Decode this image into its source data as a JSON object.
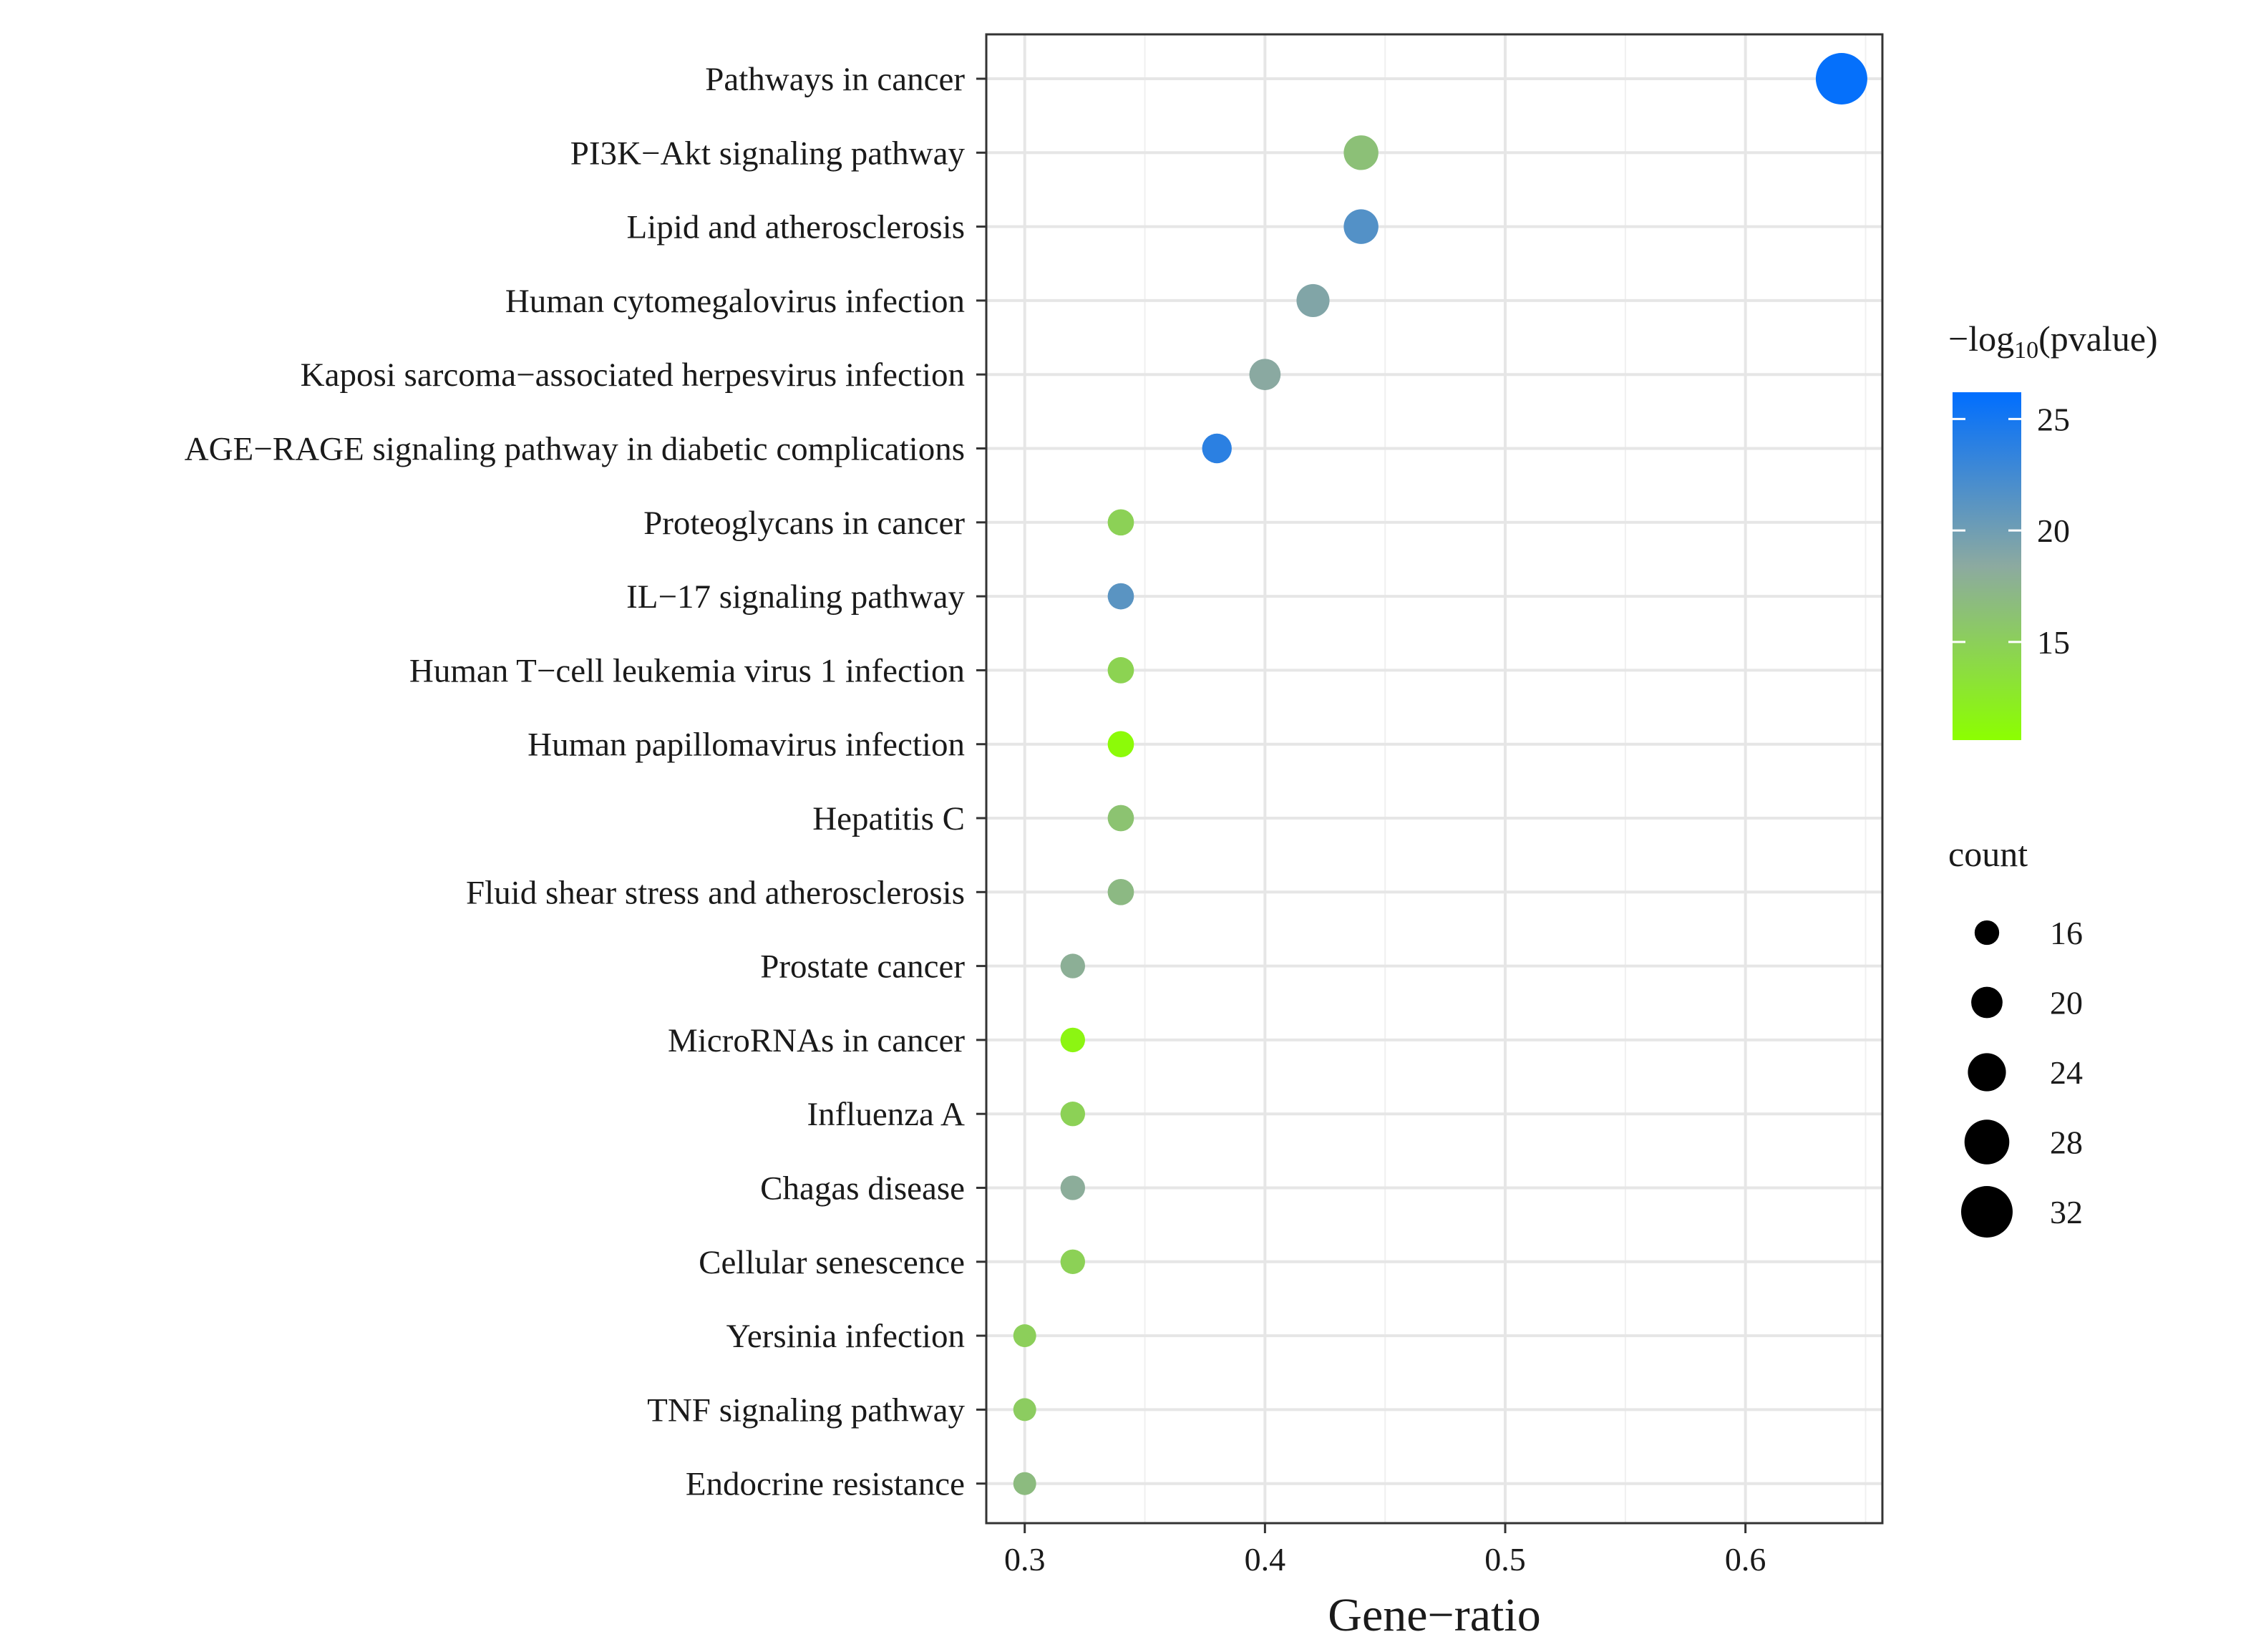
{
  "chart_data": {
    "type": "scatter",
    "xlabel": "Gene−ratio",
    "xlim": [
      0.284,
      0.657
    ],
    "x_ticks": [
      {
        "value": 0.3,
        "label": "0.3"
      },
      {
        "value": 0.4,
        "label": "0.4"
      },
      {
        "value": 0.5,
        "label": "0.5"
      },
      {
        "value": 0.6,
        "label": "0.6"
      }
    ],
    "grid": true,
    "categories": [
      "Pathways in cancer",
      "PI3K−Akt signaling pathway",
      "Lipid and atherosclerosis",
      "Human cytomegalovirus infection",
      "Kaposi sarcoma−associated herpesvirus infection",
      "AGE−RAGE signaling pathway in diabetic complications",
      "Proteoglycans in cancer",
      "IL−17 signaling pathway",
      "Human T−cell leukemia virus 1 infection",
      "Human papillomavirus infection",
      "Hepatitis C",
      "Fluid shear stress and atherosclerosis",
      "Prostate cancer",
      "MicroRNAs in cancer",
      "Influenza A",
      "Chagas disease",
      "Cellular senescence",
      "Yersinia infection",
      "TNF signaling pathway",
      "Endocrine resistance"
    ],
    "points": [
      {
        "x": 0.64,
        "count": 32,
        "neg_log10_p": 25.9
      },
      {
        "x": 0.44,
        "count": 22,
        "neg_log10_p": 16.4
      },
      {
        "x": 0.44,
        "count": 22,
        "neg_log10_p": 21.6
      },
      {
        "x": 0.42,
        "count": 21,
        "neg_log10_p": 19.0
      },
      {
        "x": 0.4,
        "count": 20,
        "neg_log10_p": 18.5
      },
      {
        "x": 0.38,
        "count": 19,
        "neg_log10_p": 23.8
      },
      {
        "x": 0.34,
        "count": 17,
        "neg_log10_p": 14.8
      },
      {
        "x": 0.34,
        "count": 17,
        "neg_log10_p": 21.2
      },
      {
        "x": 0.34,
        "count": 17,
        "neg_log10_p": 14.6
      },
      {
        "x": 0.34,
        "count": 17,
        "neg_log10_p": 11.0
      },
      {
        "x": 0.34,
        "count": 17,
        "neg_log10_p": 16.1
      },
      {
        "x": 0.34,
        "count": 17,
        "neg_log10_p": 17.0
      },
      {
        "x": 0.32,
        "count": 16,
        "neg_log10_p": 17.9
      },
      {
        "x": 0.32,
        "count": 16,
        "neg_log10_p": 11.5
      },
      {
        "x": 0.32,
        "count": 16,
        "neg_log10_p": 14.8
      },
      {
        "x": 0.32,
        "count": 16,
        "neg_log10_p": 18.1
      },
      {
        "x": 0.32,
        "count": 16,
        "neg_log10_p": 14.8
      },
      {
        "x": 0.3,
        "count": 15,
        "neg_log10_p": 15.0
      },
      {
        "x": 0.3,
        "count": 15,
        "neg_log10_p": 15.3
      },
      {
        "x": 0.3,
        "count": 15,
        "neg_log10_p": 16.8
      }
    ],
    "color_legend": {
      "title_prefix": "−log",
      "title_subscript": "10",
      "title_suffix": "(pvalue)",
      "range": [
        10.6,
        26.2
      ],
      "low_color": "#8cff00",
      "mid_color": "#8caaa0",
      "high_color": "#006eff",
      "ticks": [
        {
          "value": 15,
          "label": "15"
        },
        {
          "value": 20,
          "label": "20"
        },
        {
          "value": 25,
          "label": "25"
        }
      ]
    },
    "size_legend": {
      "title": "count",
      "range": [
        15,
        32
      ],
      "entries": [
        {
          "value": 16,
          "label": "16"
        },
        {
          "value": 20,
          "label": "20"
        },
        {
          "value": 24,
          "label": "24"
        },
        {
          "value": 28,
          "label": "28"
        },
        {
          "value": 32,
          "label": "32"
        }
      ]
    }
  }
}
